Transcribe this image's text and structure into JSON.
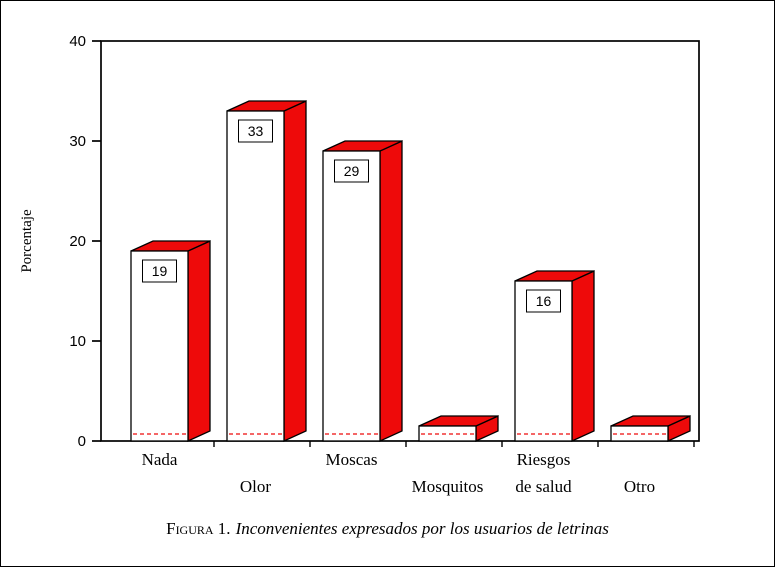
{
  "figure": {
    "caption_prefix": "Figura 1.",
    "caption_text": "Inconvenientes expresados por los usuarios de letrinas"
  },
  "chart_data": {
    "type": "bar",
    "style": "3d",
    "title": "",
    "xlabel": "",
    "ylabel": "Porcentaje",
    "categories": [
      "Nada",
      "Olor",
      "Moscas",
      "Mosquitos",
      "Riesgos\nde salud",
      "Otro"
    ],
    "values": [
      19,
      33,
      29,
      1.5,
      16,
      1.5
    ],
    "data_labels": [
      "19",
      "33",
      "29",
      null,
      "16",
      null
    ],
    "ylim": [
      0,
      40
    ],
    "yticks": [
      0,
      10,
      20,
      30,
      40
    ],
    "grid": false,
    "legend": false,
    "colors": {
      "bar_face": "#ffffff",
      "bar_side": "#ee0a0a",
      "outline": "#000000"
    }
  }
}
